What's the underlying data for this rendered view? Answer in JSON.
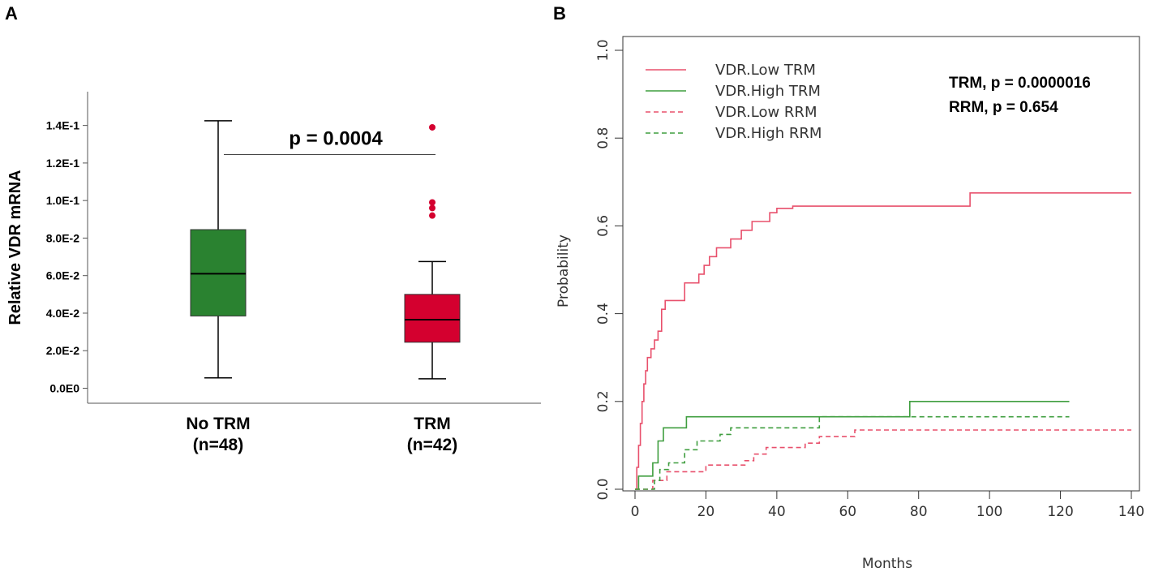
{
  "chart_data": [
    {
      "panel": "A",
      "type": "box",
      "title": "",
      "xlabel": "",
      "ylabel": "Relative VDR mRNA",
      "ylim": [
        -0.008,
        0.158
      ],
      "yticks": [
        0,
        0.02,
        0.04,
        0.06,
        0.08,
        0.1,
        0.12,
        0.14
      ],
      "ytick_labels": [
        "0.0E0",
        "2.0E-2",
        "4.0E-2",
        "6.0E-2",
        "8.0E-2",
        "1.0E-1",
        "1.2E-1",
        "1.4E-1"
      ],
      "groups": [
        {
          "name": "No TRM",
          "n_label": "(n=48)",
          "color": "#2a8230",
          "whisker_low": 0.0055,
          "q1": 0.0385,
          "median": 0.061,
          "q3": 0.0845,
          "whisker_high": 0.1425,
          "outliers": []
        },
        {
          "name": "TRM",
          "n_label": "(n=42)",
          "color": "#d4002f",
          "whisker_low": 0.005,
          "q1": 0.0245,
          "median": 0.0365,
          "q3": 0.05,
          "whisker_high": 0.0675,
          "outliers": [
            0.139,
            0.099,
            0.096,
            0.092
          ]
        }
      ],
      "annotation": {
        "text": "p = 0.0004",
        "y": 0.1245
      }
    },
    {
      "panel": "B",
      "type": "line",
      "step": true,
      "title": "",
      "xlabel": "Months",
      "ylabel": "Probability",
      "xlim": [
        0,
        140
      ],
      "ylim": [
        0,
        1
      ],
      "xticks": [
        0,
        20,
        40,
        60,
        80,
        100,
        120,
        140
      ],
      "yticks": [
        0.0,
        0.2,
        0.4,
        0.6,
        0.8,
        1.0
      ],
      "ytick_labels": [
        "0.0",
        "0.2",
        "0.4",
        "0.6",
        "0.8",
        "1.0"
      ],
      "legend_position": "top-left",
      "series": [
        {
          "name": "VDR.Low TRM",
          "color": "#e8506c",
          "dash": false,
          "points": [
            [
              0,
              0
            ],
            [
              0.5,
              0.05
            ],
            [
              1,
              0.1
            ],
            [
              1.5,
              0.15
            ],
            [
              2,
              0.2
            ],
            [
              2.5,
              0.24
            ],
            [
              3,
              0.27
            ],
            [
              3.5,
              0.3
            ],
            [
              4.5,
              0.32
            ],
            [
              5.5,
              0.34
            ],
            [
              6.5,
              0.36
            ],
            [
              7.5,
              0.41
            ],
            [
              8.5,
              0.43
            ],
            [
              14,
              0.47
            ],
            [
              18,
              0.49
            ],
            [
              19.5,
              0.51
            ],
            [
              21,
              0.53
            ],
            [
              23,
              0.55
            ],
            [
              27,
              0.57
            ],
            [
              30,
              0.59
            ],
            [
              33,
              0.61
            ],
            [
              38,
              0.63
            ],
            [
              40,
              0.64
            ],
            [
              44.5,
              0.645
            ],
            [
              94.5,
              0.675
            ],
            [
              140,
              0.675
            ]
          ]
        },
        {
          "name": "VDR.High TRM",
          "color": "#3f9e3f",
          "dash": false,
          "points": [
            [
              0,
              0
            ],
            [
              1,
              0.03
            ],
            [
              5,
              0.06
            ],
            [
              6.5,
              0.11
            ],
            [
              8,
              0.14
            ],
            [
              14.5,
              0.165
            ],
            [
              77.5,
              0.2
            ],
            [
              122.5,
              0.2
            ]
          ]
        },
        {
          "name": "VDR.Low RRM",
          "color": "#e8506c",
          "dash": true,
          "points": [
            [
              0,
              0
            ],
            [
              5,
              0.02
            ],
            [
              9,
              0.04
            ],
            [
              20,
              0.055
            ],
            [
              31,
              0.065
            ],
            [
              33.5,
              0.08
            ],
            [
              37,
              0.095
            ],
            [
              48,
              0.105
            ],
            [
              52,
              0.12
            ],
            [
              62,
              0.135
            ],
            [
              140,
              0.135
            ]
          ]
        },
        {
          "name": "VDR.High RRM",
          "color": "#3f9e3f",
          "dash": true,
          "points": [
            [
              0,
              0
            ],
            [
              5.5,
              0.02
            ],
            [
              7,
              0.045
            ],
            [
              9.5,
              0.06
            ],
            [
              14,
              0.09
            ],
            [
              17.5,
              0.11
            ],
            [
              24,
              0.125
            ],
            [
              27,
              0.14
            ],
            [
              52,
              0.165
            ],
            [
              122.5,
              0.165
            ]
          ]
        }
      ],
      "annotations": [
        "TRM, p = 0.0000016",
        "RRM, p = 0.654"
      ]
    }
  ]
}
